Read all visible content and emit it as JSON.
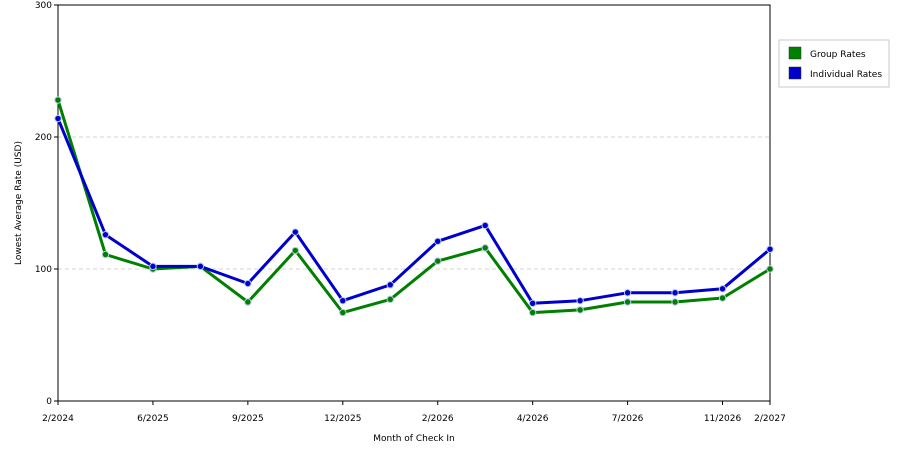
{
  "chart_data": {
    "type": "line",
    "title": "",
    "xlabel": "Month of Check In",
    "ylabel": "Lowest Average Rate (USD)",
    "ylim": [
      0,
      300
    ],
    "yticks": [
      0,
      100,
      200,
      300
    ],
    "ytick_labels": [
      "0",
      "100",
      "200",
      "300"
    ],
    "grid": "horizontal dashed",
    "legend_position": "right",
    "x_labels": [
      {
        "index": 0,
        "label": "2/2024"
      },
      {
        "index": 2,
        "label": "6/2025"
      },
      {
        "index": 4,
        "label": "9/2025"
      },
      {
        "index": 6,
        "label": "12/2025"
      },
      {
        "index": 8,
        "label": "2/2026"
      },
      {
        "index": 10,
        "label": "4/2026"
      },
      {
        "index": 12,
        "label": "7/2026"
      },
      {
        "index": 14,
        "label": "11/2026"
      },
      {
        "index": 15,
        "label": "2/2027"
      }
    ],
    "series": [
      {
        "name": "Group Rates",
        "color": "#008000",
        "values": [
          228,
          111,
          100,
          102,
          75,
          114,
          67,
          77,
          106,
          116,
          67,
          69,
          75,
          75,
          78,
          100
        ]
      },
      {
        "name": "Individual Rates",
        "color": "#0000cc",
        "values": [
          214,
          126,
          102,
          102,
          89,
          128,
          76,
          88,
          121,
          133,
          74,
          76,
          82,
          82,
          85,
          115
        ]
      }
    ]
  }
}
